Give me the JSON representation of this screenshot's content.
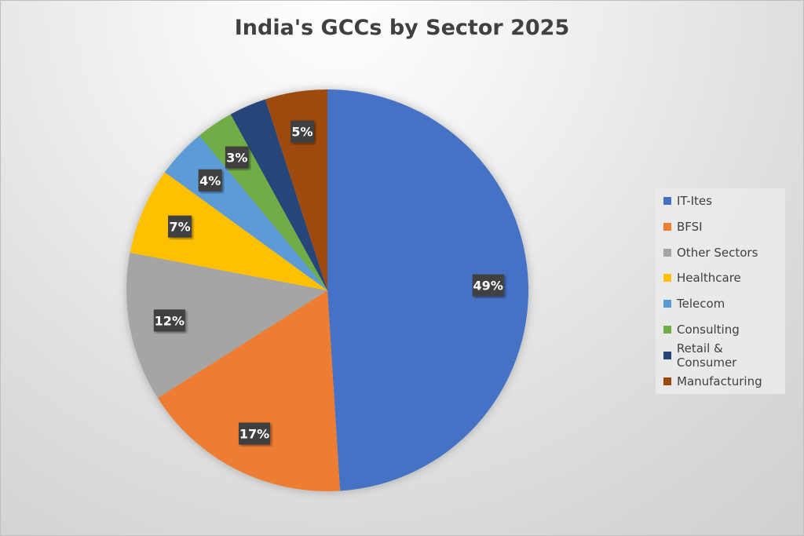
{
  "chart_data": {
    "type": "pie",
    "title": "India's GCCs by Sector 2025",
    "categories": [
      "IT-Ites",
      "BFSI",
      "Other Sectors",
      "Healthcare",
      "Telecom",
      "Consulting",
      "Retail & Consumer",
      "Manufacturing"
    ],
    "values": [
      49,
      17,
      12,
      7,
      4,
      3,
      3,
      5
    ],
    "data_labels": [
      "49%",
      "17%",
      "12%",
      "7%",
      "4%",
      "3%",
      null,
      "5%"
    ],
    "colors": [
      "#4472C4",
      "#ED7D31",
      "#A5A5A5",
      "#FFC000",
      "#5B9BD5",
      "#70AD47",
      "#264478",
      "#9E480E"
    ],
    "legend_position": "right",
    "start_angle": "top, clockwise"
  }
}
